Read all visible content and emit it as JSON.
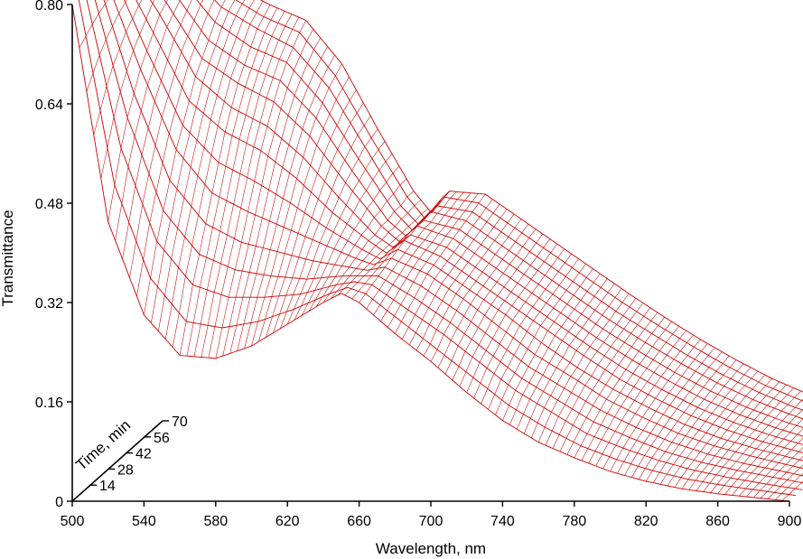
{
  "chart_data": {
    "type": "line",
    "title": "",
    "xlabel": "Wavelength, nm",
    "ylabel": "Transmittance",
    "zlabel": "Time, min",
    "x_ticks": [
      "500",
      "540",
      "580",
      "620",
      "660",
      "700",
      "740",
      "780",
      "820",
      "860",
      "900"
    ],
    "y_ticks": [
      "0",
      "0.16",
      "0.32",
      "0.48",
      "0.64",
      "0.80"
    ],
    "z_ticks": [
      "14",
      "28",
      "42",
      "56",
      "70"
    ],
    "xlim": [
      500,
      900
    ],
    "ylim": [
      0,
      0.8
    ],
    "zlim": [
      0,
      70
    ],
    "grid": false,
    "legend": "none",
    "colors": {
      "mesh": "#cc0000",
      "axes": "#000000"
    },
    "wavelengths": [
      500,
      520,
      540,
      560,
      580,
      600,
      620,
      640,
      650,
      660,
      680,
      700,
      720,
      740,
      760,
      780,
      800,
      820,
      840,
      860,
      880,
      900
    ],
    "series": [
      {
        "time": 0,
        "values": [
          0.8,
          0.45,
          0.3,
          0.235,
          0.23,
          0.25,
          0.285,
          0.32,
          0.335,
          0.32,
          0.27,
          0.225,
          0.175,
          0.13,
          0.095,
          0.07,
          0.048,
          0.032,
          0.02,
          0.012,
          0.006,
          0.0
        ]
      },
      {
        "time": 5,
        "values": [
          0.8,
          0.5,
          0.35,
          0.28,
          0.27,
          0.28,
          0.3,
          0.325,
          0.335,
          0.325,
          0.28,
          0.235,
          0.19,
          0.145,
          0.11,
          0.08,
          0.058,
          0.04,
          0.026,
          0.016,
          0.008,
          0.0
        ]
      },
      {
        "time": 10,
        "values": [
          0.8,
          0.55,
          0.4,
          0.33,
          0.31,
          0.31,
          0.315,
          0.33,
          0.335,
          0.33,
          0.29,
          0.25,
          0.205,
          0.16,
          0.125,
          0.09,
          0.067,
          0.047,
          0.031,
          0.019,
          0.009,
          0.0
        ]
      },
      {
        "time": 15,
        "values": [
          0.8,
          0.59,
          0.44,
          0.37,
          0.345,
          0.335,
          0.33,
          0.335,
          0.335,
          0.335,
          0.3,
          0.26,
          0.215,
          0.17,
          0.135,
          0.1,
          0.075,
          0.052,
          0.035,
          0.022,
          0.011,
          0.0
        ]
      },
      {
        "time": 20,
        "values": [
          0.8,
          0.62,
          0.48,
          0.41,
          0.38,
          0.365,
          0.35,
          0.34,
          0.335,
          0.34,
          0.31,
          0.27,
          0.225,
          0.18,
          0.145,
          0.11,
          0.082,
          0.058,
          0.039,
          0.024,
          0.012,
          0.0
        ]
      },
      {
        "time": 25,
        "values": [
          0.8,
          0.65,
          0.52,
          0.45,
          0.42,
          0.395,
          0.37,
          0.345,
          0.335,
          0.345,
          0.32,
          0.28,
          0.235,
          0.19,
          0.155,
          0.118,
          0.089,
          0.063,
          0.043,
          0.027,
          0.013,
          0.0
        ]
      },
      {
        "time": 30,
        "values": [
          0.8,
          0.67,
          0.55,
          0.49,
          0.46,
          0.425,
          0.385,
          0.35,
          0.335,
          0.35,
          0.325,
          0.285,
          0.245,
          0.2,
          0.16,
          0.125,
          0.095,
          0.068,
          0.046,
          0.029,
          0.014,
          0.0
        ]
      },
      {
        "time": 35,
        "values": [
          0.8,
          0.69,
          0.58,
          0.53,
          0.5,
          0.455,
          0.4,
          0.355,
          0.335,
          0.355,
          0.33,
          0.29,
          0.25,
          0.21,
          0.17,
          0.132,
          0.101,
          0.073,
          0.05,
          0.031,
          0.015,
          0.0
        ]
      },
      {
        "time": 40,
        "values": [
          0.8,
          0.71,
          0.61,
          0.56,
          0.53,
          0.48,
          0.415,
          0.355,
          0.335,
          0.355,
          0.335,
          0.295,
          0.255,
          0.215,
          0.175,
          0.138,
          0.106,
          0.077,
          0.053,
          0.033,
          0.016,
          0.0
        ]
      },
      {
        "time": 45,
        "values": [
          0.8,
          0.72,
          0.63,
          0.59,
          0.56,
          0.505,
          0.43,
          0.36,
          0.335,
          0.36,
          0.34,
          0.3,
          0.26,
          0.22,
          0.18,
          0.144,
          0.111,
          0.081,
          0.056,
          0.035,
          0.017,
          0.0
        ]
      },
      {
        "time": 50,
        "values": [
          0.8,
          0.73,
          0.65,
          0.61,
          0.585,
          0.525,
          0.44,
          0.36,
          0.335,
          0.36,
          0.345,
          0.305,
          0.265,
          0.225,
          0.185,
          0.149,
          0.115,
          0.085,
          0.059,
          0.037,
          0.018,
          0.0
        ]
      },
      {
        "time": 55,
        "values": [
          0.8,
          0.74,
          0.67,
          0.63,
          0.605,
          0.54,
          0.45,
          0.365,
          0.335,
          0.365,
          0.35,
          0.31,
          0.27,
          0.23,
          0.19,
          0.154,
          0.12,
          0.089,
          0.062,
          0.039,
          0.019,
          0.0
        ]
      },
      {
        "time": 60,
        "values": [
          0.8,
          0.745,
          0.685,
          0.65,
          0.62,
          0.555,
          0.46,
          0.365,
          0.335,
          0.365,
          0.355,
          0.315,
          0.275,
          0.235,
          0.195,
          0.159,
          0.124,
          0.092,
          0.064,
          0.04,
          0.02,
          0.0
        ]
      },
      {
        "time": 65,
        "values": [
          0.8,
          0.75,
          0.695,
          0.66,
          0.635,
          0.565,
          0.465,
          0.37,
          0.335,
          0.37,
          0.36,
          0.32,
          0.28,
          0.24,
          0.2,
          0.163,
          0.128,
          0.095,
          0.066,
          0.042,
          0.021,
          0.0
        ]
      },
      {
        "time": 70,
        "values": [
          0.8,
          0.755,
          0.7,
          0.67,
          0.645,
          0.575,
          0.47,
          0.37,
          0.335,
          0.37,
          0.365,
          0.325,
          0.285,
          0.245,
          0.205,
          0.167,
          0.131,
          0.098,
          0.068,
          0.043,
          0.022,
          0.0
        ]
      }
    ]
  }
}
